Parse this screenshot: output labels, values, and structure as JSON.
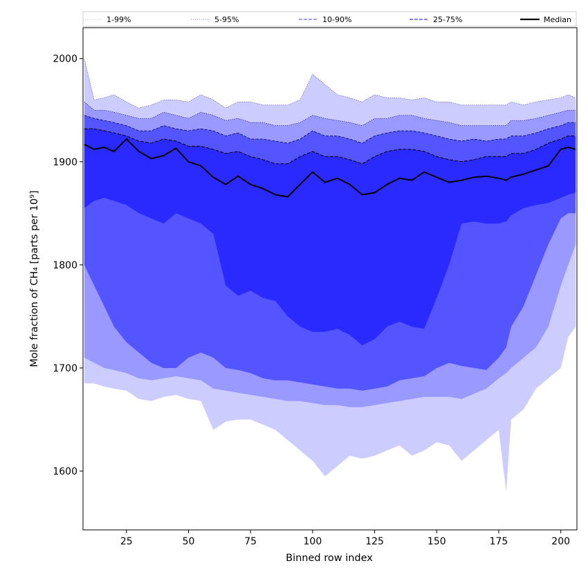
{
  "chart_data": {
    "type": "area",
    "xlabel": "Binned row index",
    "ylabel": "Mole fraction of CH₄ [parts per 10⁹]",
    "xlim": [
      7.5,
      206.5
    ],
    "ylim": [
      1543,
      2030
    ],
    "xticks": [
      25,
      50,
      75,
      100,
      125,
      150,
      175,
      200
    ],
    "yticks": [
      1600,
      1700,
      1800,
      1900,
      2000
    ],
    "grid": false,
    "legend": {
      "placement": "top",
      "entries": [
        {
          "label": "1-99%",
          "color": "#ccccff",
          "style": "dotted"
        },
        {
          "label": "5-95%",
          "color": "#9999ff",
          "style": "dotted"
        },
        {
          "label": "10-90%",
          "color": "#6666ff",
          "style": "dashed"
        },
        {
          "label": "25-75%",
          "color": "#3333ff",
          "style": "dashed"
        },
        {
          "label": "Median",
          "color": "#000000",
          "style": "solid"
        }
      ]
    },
    "bands": [
      {
        "name": "1-99%",
        "color": "#ccccff"
      },
      {
        "name": "5-95%",
        "color": "#9999ff"
      },
      {
        "name": "10-90%",
        "color": "#5555ff"
      },
      {
        "name": "25-75%",
        "color": "#2a2aff"
      }
    ],
    "x": [
      8,
      12,
      16,
      20,
      25,
      30,
      35,
      40,
      45,
      50,
      55,
      60,
      65,
      70,
      75,
      80,
      85,
      90,
      95,
      100,
      105,
      110,
      115,
      120,
      125,
      130,
      135,
      140,
      145,
      150,
      155,
      160,
      165,
      170,
      175,
      178,
      180,
      185,
      190,
      195,
      200,
      203,
      206
    ],
    "series": [
      {
        "name": "Median",
        "values": [
          1917,
          1912,
          1914,
          1910,
          1922,
          1910,
          1903,
          1906,
          1913,
          1900,
          1896,
          1885,
          1878,
          1886,
          1878,
          1874,
          1868,
          1866,
          1878,
          1890,
          1880,
          1884,
          1878,
          1868,
          1870,
          1878,
          1884,
          1882,
          1890,
          1885,
          1880,
          1882,
          1885,
          1886,
          1884,
          1882,
          1885,
          1888,
          1892,
          1896,
          1912,
          1914,
          1912
        ]
      },
      {
        "name": "p99",
        "values": [
          2000,
          1960,
          1962,
          1965,
          1958,
          1952,
          1955,
          1960,
          1960,
          1958,
          1965,
          1960,
          1952,
          1958,
          1958,
          1955,
          1955,
          1955,
          1960,
          1985,
          1975,
          1965,
          1962,
          1958,
          1965,
          1962,
          1962,
          1960,
          1962,
          1958,
          1958,
          1955,
          1955,
          1955,
          1955,
          1955,
          1958,
          1955,
          1958,
          1960,
          1962,
          1965,
          1962
        ]
      },
      {
        "name": "p95",
        "values": [
          1958,
          1950,
          1950,
          1948,
          1945,
          1942,
          1942,
          1948,
          1945,
          1942,
          1948,
          1945,
          1940,
          1942,
          1938,
          1938,
          1935,
          1935,
          1938,
          1945,
          1942,
          1940,
          1938,
          1935,
          1942,
          1942,
          1945,
          1945,
          1942,
          1940,
          1938,
          1935,
          1935,
          1935,
          1935,
          1935,
          1940,
          1940,
          1942,
          1945,
          1948,
          1950,
          1950
        ]
      },
      {
        "name": "p90",
        "values": [
          1945,
          1942,
          1940,
          1938,
          1935,
          1930,
          1930,
          1935,
          1932,
          1930,
          1932,
          1930,
          1925,
          1928,
          1922,
          1922,
          1920,
          1918,
          1922,
          1930,
          1925,
          1925,
          1922,
          1918,
          1925,
          1928,
          1930,
          1930,
          1928,
          1925,
          1922,
          1920,
          1922,
          1920,
          1922,
          1922,
          1925,
          1925,
          1928,
          1932,
          1935,
          1938,
          1938
        ]
      },
      {
        "name": "p75",
        "values": [
          1932,
          1932,
          1930,
          1928,
          1925,
          1920,
          1918,
          1922,
          1920,
          1915,
          1915,
          1912,
          1908,
          1910,
          1905,
          1902,
          1898,
          1898,
          1905,
          1910,
          1905,
          1905,
          1902,
          1898,
          1905,
          1910,
          1912,
          1912,
          1910,
          1905,
          1902,
          1900,
          1902,
          1905,
          1905,
          1905,
          1908,
          1908,
          1912,
          1918,
          1922,
          1925,
          1925
        ]
      },
      {
        "name": "p25",
        "values": [
          1855,
          1862,
          1865,
          1862,
          1858,
          1850,
          1845,
          1840,
          1850,
          1845,
          1840,
          1830,
          1780,
          1770,
          1775,
          1768,
          1765,
          1750,
          1740,
          1735,
          1735,
          1738,
          1732,
          1722,
          1728,
          1740,
          1745,
          1740,
          1738,
          1768,
          1800,
          1840,
          1842,
          1840,
          1840,
          1842,
          1848,
          1855,
          1858,
          1860,
          1865,
          1868,
          1870
        ]
      },
      {
        "name": "p10",
        "values": [
          1800,
          1780,
          1760,
          1740,
          1725,
          1715,
          1705,
          1700,
          1700,
          1710,
          1715,
          1710,
          1700,
          1698,
          1695,
          1690,
          1688,
          1688,
          1686,
          1684,
          1682,
          1680,
          1680,
          1678,
          1680,
          1682,
          1688,
          1690,
          1692,
          1700,
          1705,
          1702,
          1700,
          1698,
          1710,
          1720,
          1740,
          1760,
          1790,
          1820,
          1845,
          1850,
          1850
        ]
      },
      {
        "name": "p5",
        "values": [
          1710,
          1705,
          1700,
          1698,
          1695,
          1690,
          1688,
          1690,
          1692,
          1690,
          1688,
          1680,
          1678,
          1676,
          1674,
          1672,
          1670,
          1668,
          1668,
          1666,
          1664,
          1664,
          1662,
          1662,
          1664,
          1666,
          1668,
          1670,
          1672,
          1672,
          1672,
          1670,
          1675,
          1680,
          1690,
          1695,
          1700,
          1710,
          1720,
          1740,
          1780,
          1800,
          1820
        ]
      },
      {
        "name": "p1",
        "values": [
          1685,
          1685,
          1682,
          1680,
          1678,
          1670,
          1668,
          1672,
          1674,
          1670,
          1668,
          1640,
          1648,
          1650,
          1650,
          1645,
          1640,
          1630,
          1620,
          1610,
          1595,
          1605,
          1615,
          1612,
          1615,
          1620,
          1625,
          1615,
          1620,
          1628,
          1625,
          1610,
          1620,
          1630,
          1640,
          1580,
          1650,
          1660,
          1680,
          1690,
          1700,
          1730,
          1740
        ]
      }
    ]
  }
}
